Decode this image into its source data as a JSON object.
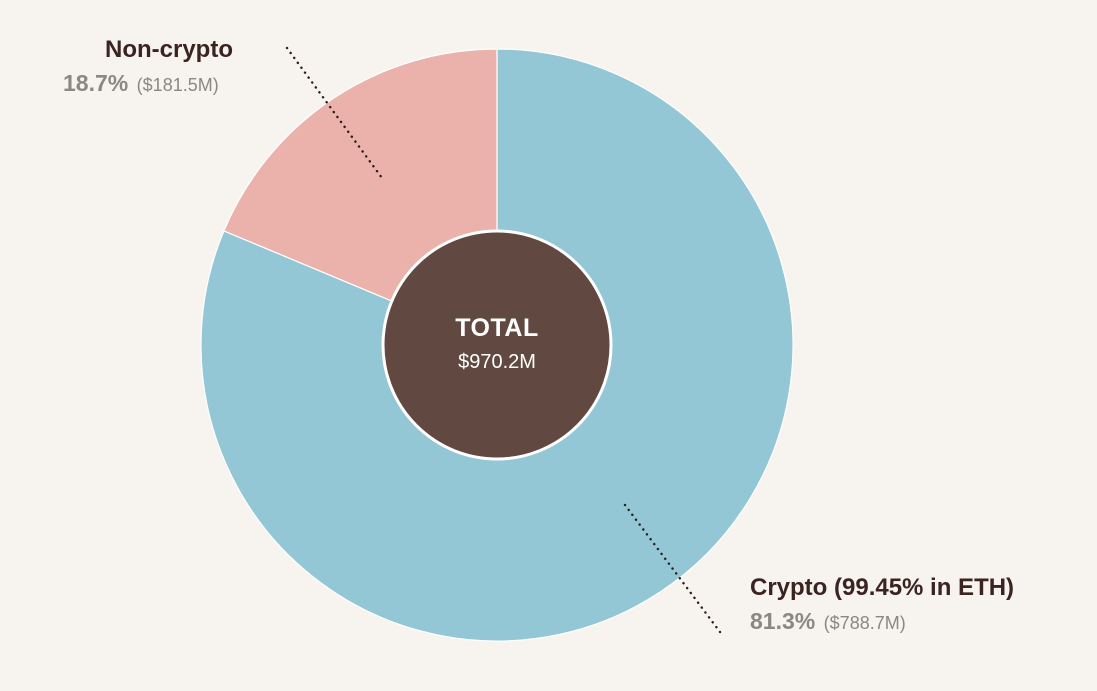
{
  "chart_data": {
    "type": "pie",
    "style": "donut",
    "center": {
      "title": "TOTAL",
      "value": "$970.2M"
    },
    "slices": [
      {
        "name": "Crypto (99.45% in ETH)",
        "percent": 81.3,
        "percent_label": "81.3%",
        "amount_label": "($788.7M)",
        "amount_millions": 788.7,
        "color": "#93c7d6"
      },
      {
        "name": "Non-crypto",
        "percent": 18.7,
        "percent_label": "18.7%",
        "amount_label": "($181.5M)",
        "amount_millions": 181.5,
        "color": "#ebb1ab"
      }
    ],
    "center_color": "#614840",
    "leader_line_color": "#2a1d1a"
  }
}
